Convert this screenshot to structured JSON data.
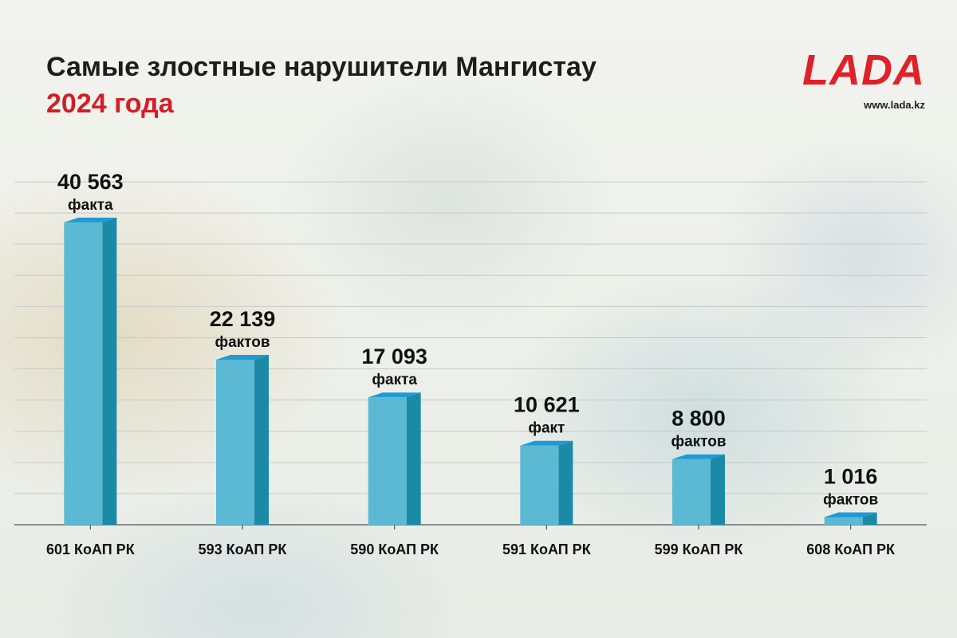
{
  "header": {
    "title": "Самые злостные нарушители Мангистау",
    "subtitle": "2024 года"
  },
  "brand": {
    "logo_text": "LADA",
    "url": "www.lada.kz"
  },
  "colors": {
    "title": "#1d1d1b",
    "accent_red": "#d21f26",
    "bar_front": "#5cb9d4",
    "bar_side": "#1b8aa6",
    "bar_top": "#1e9ad6",
    "grid": "#c7cac6",
    "axis": "#555555"
  },
  "chart_data": {
    "type": "bar",
    "categories": [
      "601 КоАП РК",
      "593 КоАП РК",
      "590 КоАП РК",
      "591 КоАП РК",
      "599 КоАП РК",
      "608 КоАП РК"
    ],
    "values": [
      40563,
      22139,
      17093,
      10621,
      8800,
      1016
    ],
    "value_labels": [
      "40 563",
      "22 139",
      "17 093",
      "10 621",
      "8 800",
      "1 016"
    ],
    "unit_labels": [
      "факта",
      "фактов",
      "факта",
      "факт",
      "фактов",
      "фактов"
    ],
    "ylim": [
      0,
      46000
    ],
    "grid": true,
    "xlabel": "",
    "ylabel": ""
  }
}
